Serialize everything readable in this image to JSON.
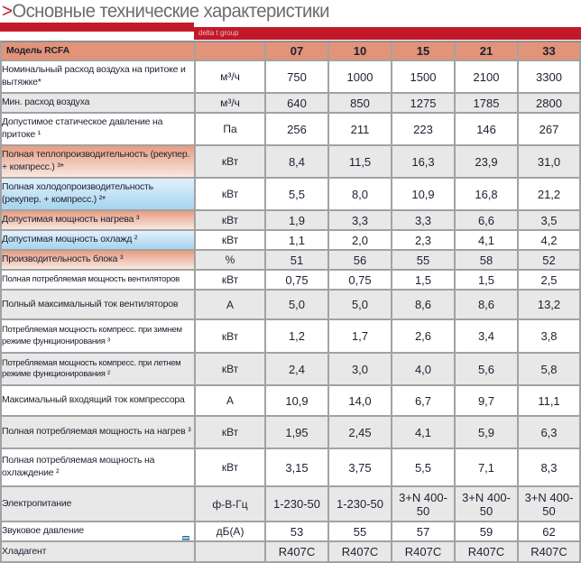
{
  "page": {
    "title_prefix": ">",
    "title": "Основные технические характеристики",
    "brand_bar": "delta t group"
  },
  "colors": {
    "accent_red": "#c2192a",
    "header_salmon": "#e39378",
    "row_gray": "#e8e8e8",
    "label_heating_gradient_from": "#e79d81",
    "label_heating_gradient_to": "#f8e8e0",
    "label_cooling_gradient_from": "#e3f1fb",
    "label_cooling_gradient_to": "#a5d4ef",
    "border_gray": "#a2a2a2",
    "note_icon_teal": "#1f6f9b"
  },
  "icons": {
    "music_note": "♬"
  },
  "table": {
    "header": {
      "model": "Модель RCFA",
      "columns": [
        "07",
        "10",
        "15",
        "21",
        "33"
      ]
    },
    "rows": [
      {
        "label": "Номинальный расход воздуха на притоке и вытяжке*",
        "unit": "м³/ч",
        "values": [
          "750",
          "1000",
          "1500",
          "2100",
          "3300"
        ],
        "label_style": "plain",
        "bg": "white"
      },
      {
        "label": "Мин. расход воздуха",
        "unit": "м³/ч",
        "values": [
          "640",
          "850",
          "1275",
          "1785",
          "2800"
        ],
        "label_style": "plain",
        "bg": "gray"
      },
      {
        "label": "Допустимое статическое давление на притоке ¹",
        "unit": "Па",
        "values": [
          "256",
          "211",
          "223",
          "146",
          "267"
        ],
        "label_style": "plain",
        "bg": "white"
      },
      {
        "label": "Полная теплопроизводительность (рекупер. + компресс.) ³*",
        "unit": "кВт",
        "values": [
          "8,4",
          "11,5",
          "16,3",
          "23,9",
          "31,0"
        ],
        "label_style": "red",
        "bg": "gray"
      },
      {
        "label": "Полная холодопроизводительность (рекупер. + компресс.) ²*",
        "unit": "кВт",
        "values": [
          "5,5",
          "8,0",
          "10,9",
          "16,8",
          "21,2"
        ],
        "label_style": "blue",
        "bg": "white"
      },
      {
        "label": "Допустимая мощность нагрева ³",
        "unit": "кВт",
        "values": [
          "1,9",
          "3,3",
          "3,3",
          "6,6",
          "3,5"
        ],
        "label_style": "red",
        "bg": "gray"
      },
      {
        "label": "Допустимая мощность охлажд ²",
        "unit": "кВт",
        "values": [
          "1,1",
          "2,0",
          "2,3",
          "4,1",
          "4,2"
        ],
        "label_style": "blue",
        "bg": "white"
      },
      {
        "label": "Производительность блока ³",
        "unit": "%",
        "values": [
          "51",
          "56",
          "55",
          "58",
          "52"
        ],
        "label_style": "red",
        "bg": "gray"
      },
      {
        "label": "Полная потребляемая мощность вентиляторов",
        "unit": "кВт",
        "values": [
          "0,75",
          "0,75",
          "1,5",
          "1,5",
          "2,5"
        ],
        "label_style": "plain",
        "bg": "white"
      },
      {
        "label": "Полный максимальный ток вентиляторов",
        "unit": "А",
        "values": [
          "5,0",
          "5,0",
          "8,6",
          "8,6",
          "13,2"
        ],
        "label_style": "plain",
        "bg": "gray"
      },
      {
        "label": "Потребляемая мощность компресс. при зимнем режиме функционирования ³",
        "unit": "кВт",
        "values": [
          "1,2",
          "1,7",
          "2,6",
          "3,4",
          "3,8"
        ],
        "label_style": "plain",
        "bg": "white"
      },
      {
        "label": "Потребляемая мощность компресс. при летнем режиме функционирования ²",
        "unit": "кВт",
        "values": [
          "2,4",
          "3,0",
          "4,0",
          "5,6",
          "5,8"
        ],
        "label_style": "plain",
        "bg": "gray"
      },
      {
        "label": "Максимальный входящий ток компрессора",
        "unit": "А",
        "values": [
          "10,9",
          "14,0",
          "6,7",
          "9,7",
          "11,1"
        ],
        "label_style": "plain",
        "bg": "white"
      },
      {
        "label": "Полная потребляемая мощность на нагрев ³",
        "unit": "кВт",
        "values": [
          "1,95",
          "2,45",
          "4,1",
          "5,9",
          "6,3"
        ],
        "label_style": "plain",
        "bg": "gray"
      },
      {
        "label": "Полная потребляемая мощность на охлаждение ²",
        "unit": "кВт",
        "values": [
          "3,15",
          "3,75",
          "5,5",
          "7,1",
          "8,3"
        ],
        "label_style": "plain",
        "bg": "white"
      },
      {
        "label": "Электропитание",
        "unit": "ф-В-Гц",
        "values": [
          "1-230-50",
          "1-230-50",
          "3+N 400-50",
          "3+N 400-50",
          "3+N 400-50"
        ],
        "label_style": "plain",
        "bg": "gray"
      },
      {
        "label": "Звуковое давление",
        "unit": "дБ(А)",
        "values": [
          "53",
          "55",
          "57",
          "59",
          "62"
        ],
        "label_style": "plain",
        "bg": "white",
        "note_icon": true
      },
      {
        "label": "Хладагент",
        "unit": "",
        "values": [
          "R407C",
          "R407C",
          "R407C",
          "R407C",
          "R407C"
        ],
        "label_style": "plain",
        "bg": "gray"
      }
    ]
  }
}
